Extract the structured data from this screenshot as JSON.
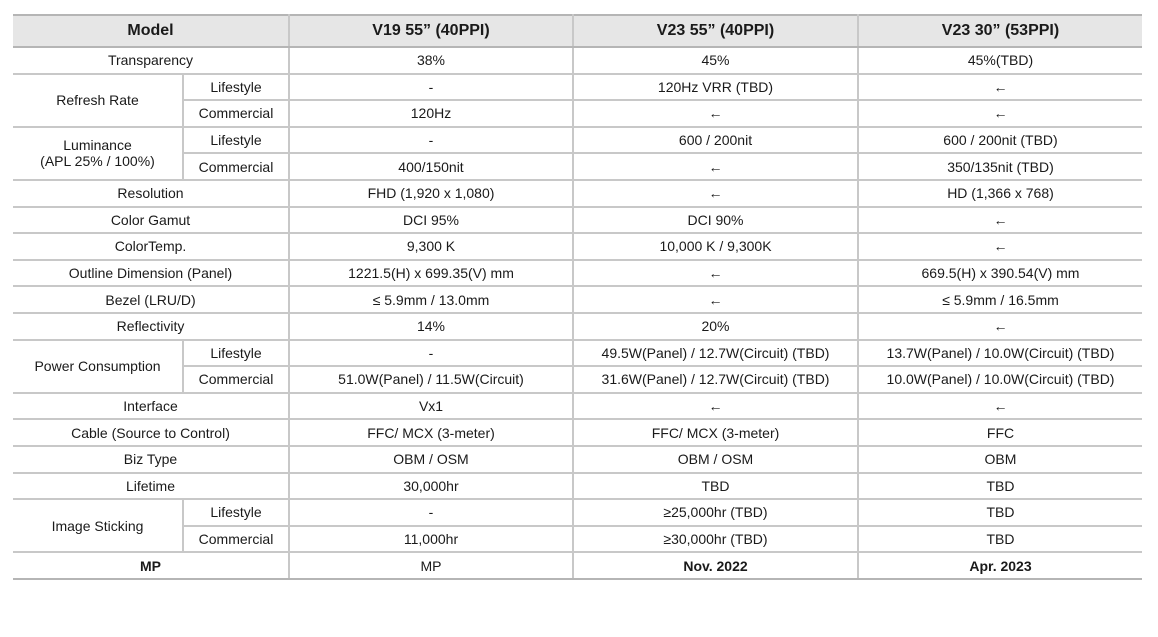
{
  "header": {
    "model": "Model",
    "col1": "V19 55” (40PPI)",
    "col2": "V23 55” (40PPI)",
    "col3": "V23 30” (53PPI)"
  },
  "rows": {
    "transparency": {
      "label": "Transparency",
      "v1": "38%",
      "v2": "45%",
      "v3": "45%(TBD)"
    },
    "refresh": {
      "label": "Refresh Rate",
      "lifestyle": {
        "sub": "Lifestyle",
        "v1": "-",
        "v2": "120Hz VRR (TBD)",
        "v3": "←"
      },
      "commercial": {
        "sub": "Commercial",
        "v1": "120Hz",
        "v2": "←",
        "v3": "←"
      }
    },
    "luminance": {
      "label_line1": "Luminance",
      "label_line2": "(APL 25% / 100%)",
      "lifestyle": {
        "sub": "Lifestyle",
        "v1": "-",
        "v2": "600 / 200nit",
        "v3": "600 / 200nit (TBD)"
      },
      "commercial": {
        "sub": "Commercial",
        "v1": "400/150nit",
        "v2": "←",
        "v3": "350/135nit (TBD)"
      }
    },
    "resolution": {
      "label": "Resolution",
      "v1": "FHD (1,920 x 1,080)",
      "v2": "←",
      "v3": "HD (1,366 x 768)"
    },
    "color_gamut": {
      "label": "Color Gamut",
      "v1": "DCI 95%",
      "v2": "DCI 90%",
      "v3": "←"
    },
    "color_temp": {
      "label": "ColorTemp.",
      "v1": "9,300 K",
      "v2": "10,000 K / 9,300K",
      "v3": "←"
    },
    "outline": {
      "label": "Outline Dimension (Panel)",
      "v1": "1221.5(H) x 699.35(V) mm",
      "v2": "←",
      "v3": "669.5(H) x 390.54(V) mm"
    },
    "bezel": {
      "label": "Bezel (LRU/D)",
      "v1": "≤ 5.9mm / 13.0mm",
      "v2": "←",
      "v3": "≤ 5.9mm / 16.5mm"
    },
    "reflectivity": {
      "label": "Reflectivity",
      "v1": "14%",
      "v2": "20%",
      "v3": "←"
    },
    "power": {
      "label": "Power Consumption",
      "lifestyle": {
        "sub": "Lifestyle",
        "v1": "-",
        "v2": "49.5W(Panel) / 12.7W(Circuit) (TBD)",
        "v3": "13.7W(Panel) / 10.0W(Circuit) (TBD)"
      },
      "commercial": {
        "sub": "Commercial",
        "v1": "51.0W(Panel) / 11.5W(Circuit)",
        "v2": "31.6W(Panel) / 12.7W(Circuit) (TBD)",
        "v3": "10.0W(Panel) / 10.0W(Circuit) (TBD)"
      }
    },
    "interface": {
      "label": "Interface",
      "v1": "Vx1",
      "v2": "←",
      "v3": "←"
    },
    "cable": {
      "label": "Cable (Source to Control)",
      "v1": "FFC/ MCX (3-meter)",
      "v2": "FFC/ MCX (3-meter)",
      "v3": "FFC"
    },
    "biz_type": {
      "label": "Biz Type",
      "v1": "OBM / OSM",
      "v2": "OBM / OSM",
      "v3": "OBM"
    },
    "lifetime": {
      "label": "Lifetime",
      "v1": "30,000hr",
      "v2": "TBD",
      "v3": "TBD"
    },
    "sticking": {
      "label": "Image Sticking",
      "lifestyle": {
        "sub": "Lifestyle",
        "v1": "-",
        "v2": "≥25,000hr (TBD)",
        "v3": "TBD"
      },
      "commercial": {
        "sub": "Commercial",
        "v1": "11,000hr",
        "v2": "≥30,000hr (TBD)",
        "v3": "TBD"
      }
    },
    "mp": {
      "label": "MP",
      "v1": "MP",
      "v2": "Nov. 2022",
      "v3": "Apr. 2023"
    }
  }
}
